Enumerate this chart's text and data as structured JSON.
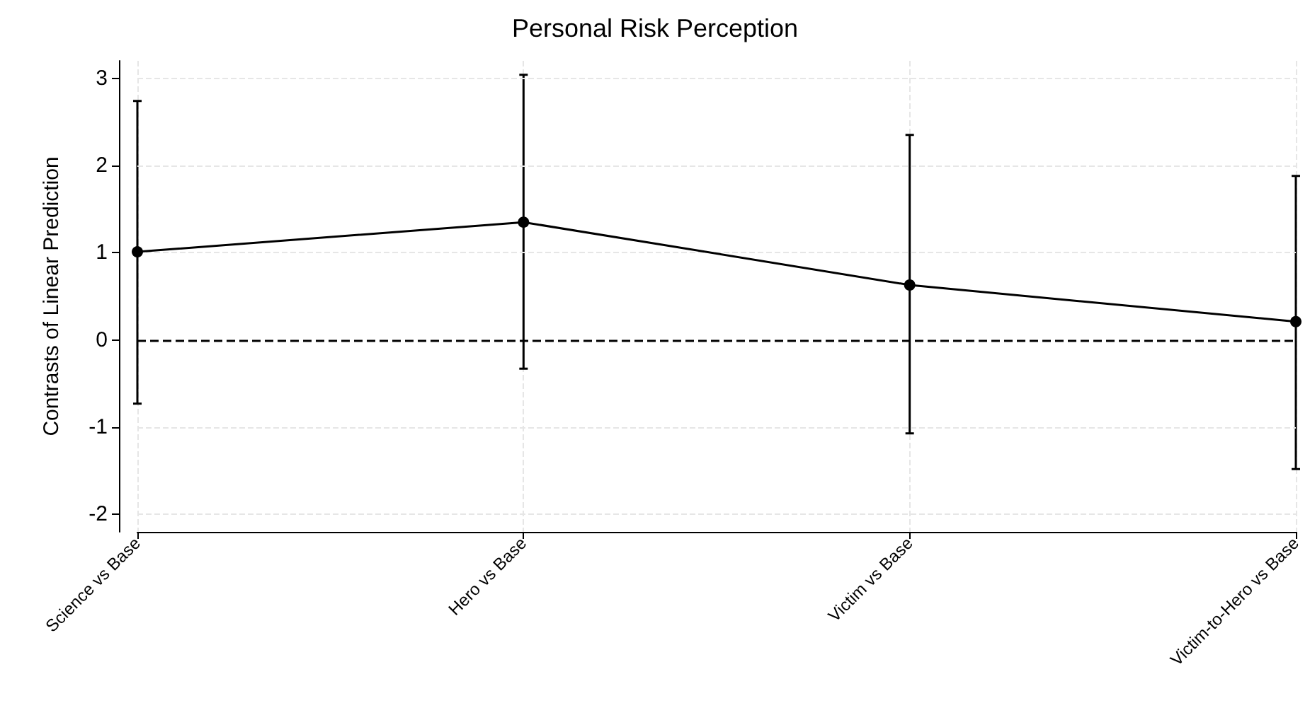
{
  "chart_data": {
    "type": "line",
    "title": "Personal Risk Perception",
    "ylabel": "Contrasts of Linear Prediction",
    "categories": [
      "Science vs Base",
      "Hero vs Base",
      "Victim vs Base",
      "Victim-to-Hero vs Base"
    ],
    "series": [
      {
        "color": "#000000",
        "values": [
          1.01,
          1.35,
          0.63,
          0.21
        ],
        "errors": [
          [
            -0.73,
            2.74
          ],
          [
            -0.33,
            3.04
          ],
          [
            -1.07,
            2.35
          ],
          [
            -1.48,
            1.88
          ]
        ]
      }
    ],
    "ylim": [
      -2.2,
      3.2
    ],
    "yticks": [
      -2,
      -1,
      0,
      1,
      2,
      3
    ],
    "grid": true,
    "marker": "circle",
    "line_style": "solid",
    "ref_lines": [
      {
        "axis": "y",
        "value": 0,
        "color": "#000000",
        "line_style": "dashed"
      }
    ]
  }
}
